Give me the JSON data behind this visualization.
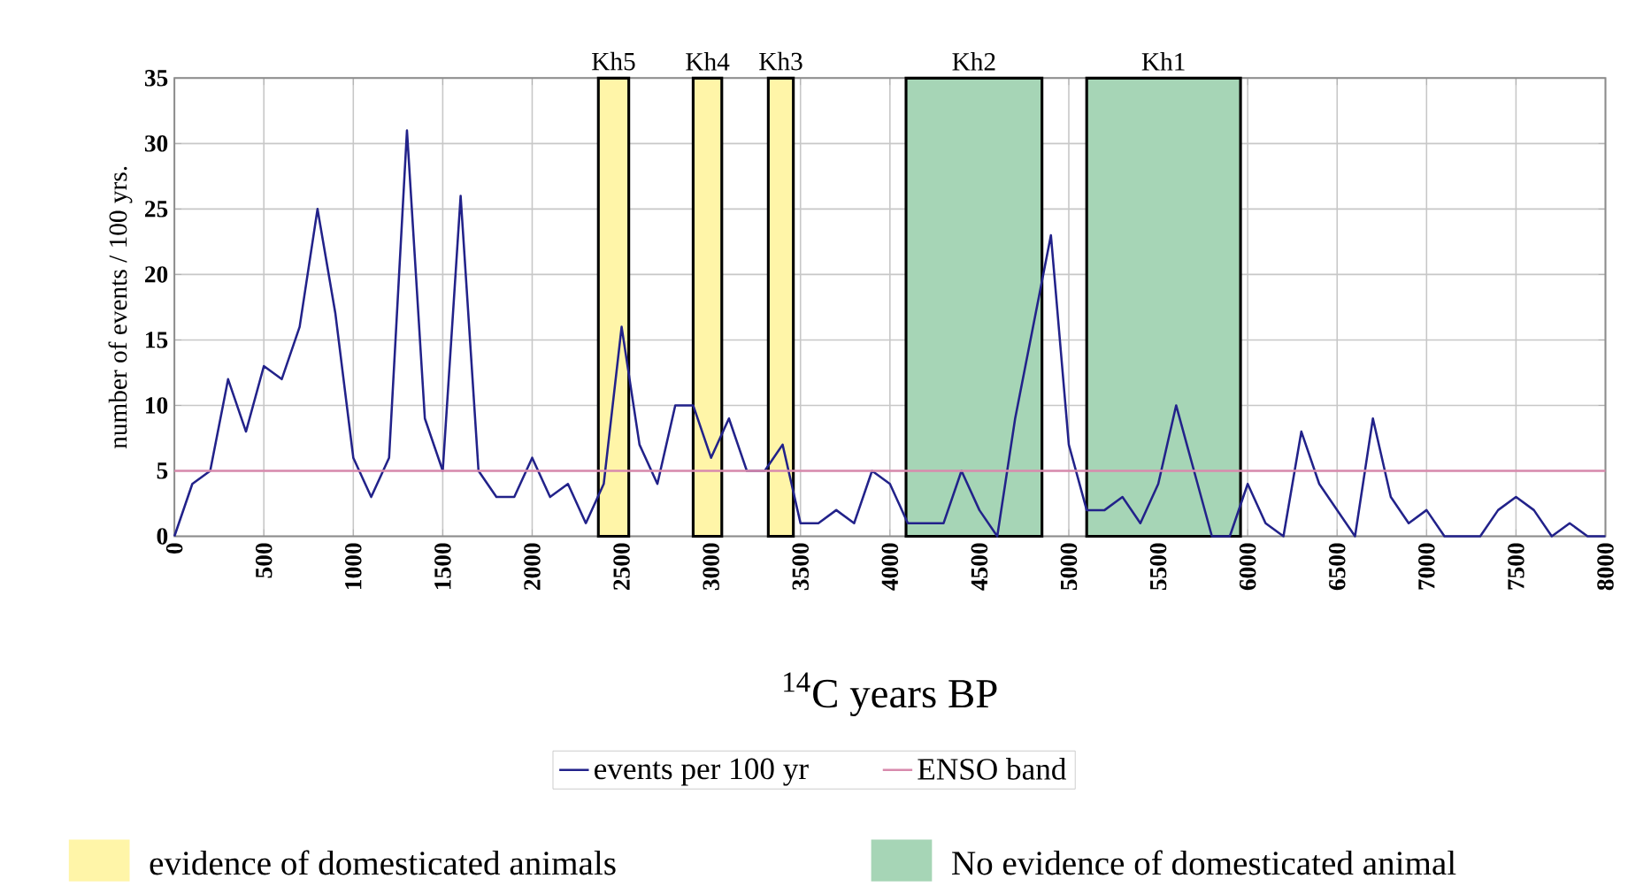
{
  "chart_data": {
    "type": "line",
    "xlabel": "$^{14}$C years BP",
    "ylabel": "number of events / 100 yrs.",
    "x": [
      0,
      100,
      200,
      300,
      400,
      500,
      600,
      700,
      800,
      900,
      1000,
      1100,
      1200,
      1300,
      1400,
      1500,
      1600,
      1700,
      1800,
      1900,
      2000,
      2100,
      2200,
      2300,
      2400,
      2500,
      2600,
      2700,
      2800,
      2900,
      3000,
      3100,
      3200,
      3300,
      3400,
      3500,
      3600,
      3700,
      3800,
      3900,
      4000,
      4100,
      4200,
      4300,
      4400,
      4500,
      4600,
      4700,
      4800,
      4900,
      5000,
      5100,
      5200,
      5300,
      5400,
      5500,
      5600,
      5700,
      5800,
      5900,
      6000,
      6100,
      6200,
      6300,
      6400,
      6500,
      6600,
      6700,
      6800,
      6900,
      7000,
      7100,
      7200,
      7300,
      7400,
      7500,
      7600,
      7700,
      7800,
      7900,
      8000
    ],
    "series": [
      {
        "name": "events per 100 yr",
        "color": "#22228a",
        "values": [
          0,
          4,
          5,
          12,
          8,
          13,
          12,
          16,
          25,
          17,
          6,
          3,
          6,
          31,
          9,
          5,
          26,
          5,
          3,
          3,
          6,
          3,
          4,
          1,
          4,
          16,
          7,
          4,
          10,
          10,
          6,
          9,
          5,
          5,
          7,
          1,
          1,
          2,
          1,
          5,
          4,
          1,
          1,
          1,
          5,
          2,
          0,
          9,
          16,
          23,
          7,
          2,
          2,
          3,
          1,
          4,
          10,
          5,
          0,
          0,
          4,
          1,
          0,
          8,
          4,
          2,
          0,
          9,
          3,
          1,
          2,
          0,
          0,
          0,
          2,
          3,
          2,
          0,
          1,
          0,
          0
        ]
      }
    ],
    "xlim": [
      0,
      8000
    ],
    "ylim": [
      0,
      35
    ],
    "xticks": [
      0,
      500,
      1000,
      1500,
      2000,
      2500,
      3000,
      3500,
      4000,
      4500,
      5000,
      5500,
      6000,
      6500,
      7000,
      7500,
      8000
    ],
    "yticks": [
      0,
      5,
      10,
      15,
      20,
      25,
      30,
      35
    ],
    "grid": true,
    "legend": "bottom",
    "ref_lines": [
      {
        "axis": "y",
        "value": 5,
        "label": "ENSO band",
        "color": "#d88aad"
      }
    ],
    "bands": [
      {
        "axis": "x",
        "from": 2370,
        "to": 2540,
        "label": "Kh5",
        "color": "#fff5a8"
      },
      {
        "axis": "x",
        "from": 2900,
        "to": 3060,
        "label": "Kh4",
        "color": "#fff5a8"
      },
      {
        "axis": "x",
        "from": 3320,
        "to": 3460,
        "label": "Kh3",
        "color": "#fff5a8"
      },
      {
        "axis": "x",
        "from": 4090,
        "to": 4850,
        "label": "Kh2",
        "color": "#a6d5b6"
      },
      {
        "axis": "x",
        "from": 5100,
        "to": 5960,
        "label": "Kh1",
        "color": "#a6d5b6"
      }
    ],
    "annotations": [
      "evidence of domesticated animals",
      "No evidence of domesticated animal"
    ]
  }
}
